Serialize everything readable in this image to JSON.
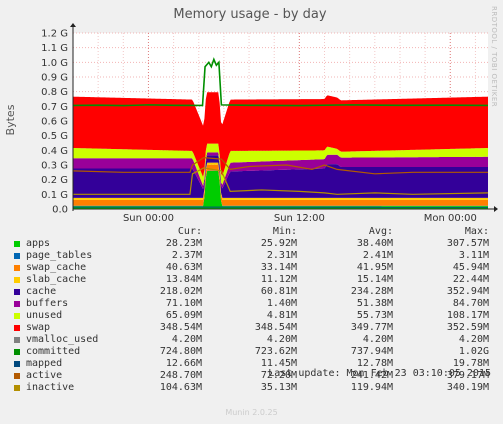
{
  "chart_data": {
    "type": "area",
    "title": "Memory usage - by day",
    "ylabel": "Bytes",
    "side_label": "RRDTOOL / TOBI OETIKER",
    "ylim": [
      0,
      1.2
    ],
    "y_ticks": [
      {
        "v": 0.0,
        "label": "0.0"
      },
      {
        "v": 0.1,
        "label": "0.1 G"
      },
      {
        "v": 0.2,
        "label": "0.2 G"
      },
      {
        "v": 0.3,
        "label": "0.3 G"
      },
      {
        "v": 0.4,
        "label": "0.4 G"
      },
      {
        "v": 0.5,
        "label": "0.5 G"
      },
      {
        "v": 0.6,
        "label": "0.6 G"
      },
      {
        "v": 0.7,
        "label": "0.7 G"
      },
      {
        "v": 0.8,
        "label": "0.8 G"
      },
      {
        "v": 0.9,
        "label": "0.9 G"
      },
      {
        "v": 1.0,
        "label": "1.0 G"
      },
      {
        "v": 1.1,
        "label": "1.1 G"
      },
      {
        "v": 1.2,
        "label": "1.2 G"
      }
    ],
    "x_ticks": [
      {
        "h": 6,
        "label": "Sun 00:00"
      },
      {
        "h": 18,
        "label": "Sun 12:00"
      },
      {
        "h": 30,
        "label": "Mon 00:00"
      }
    ],
    "xlim": [
      0,
      33
    ],
    "stack": [
      {
        "name": "apps",
        "color": "#00cc00",
        "times": [
          0,
          10.4,
          10.6,
          11.6,
          11.8,
          33
        ],
        "values": [
          0.02,
          0.02,
          0.26,
          0.26,
          0.02,
          0.02
        ]
      },
      {
        "name": "page_tables",
        "color": "#0066b3",
        "times": [
          0,
          33
        ],
        "values": [
          0.002,
          0.002
        ]
      },
      {
        "name": "swap_cache",
        "color": "#ff8000",
        "times": [
          0,
          33
        ],
        "values": [
          0.04,
          0.04
        ]
      },
      {
        "name": "slab_cache",
        "color": "#ffcc00",
        "times": [
          0,
          33
        ],
        "values": [
          0.014,
          0.014
        ]
      },
      {
        "name": "cache",
        "color": "#330099",
        "times": [
          0,
          9.5,
          10.4,
          11.8,
          12.5,
          20,
          20.2,
          21,
          21.3,
          33
        ],
        "values": [
          0.2,
          0.2,
          0.05,
          0.05,
          0.18,
          0.2,
          0.23,
          0.23,
          0.21,
          0.21
        ]
      },
      {
        "name": "buffers",
        "color": "#990099",
        "times": [
          0,
          9.5,
          10.4,
          11.8,
          12.5,
          33
        ],
        "values": [
          0.07,
          0.07,
          0.02,
          0.02,
          0.06,
          0.07
        ]
      },
      {
        "name": "unused",
        "color": "#ccff00",
        "times": [
          0,
          9.5,
          10.4,
          11.8,
          12.5,
          20,
          21,
          33
        ],
        "values": [
          0.07,
          0.05,
          0.06,
          0.06,
          0.08,
          0.06,
          0.04,
          0.06
        ]
      },
      {
        "name": "swap",
        "color": "#ff0000",
        "times": [
          0,
          33
        ],
        "values": [
          0.35,
          0.35
        ]
      }
    ],
    "lines": [
      {
        "name": "committed",
        "color": "#008f00",
        "width": 1.6,
        "points": [
          [
            0,
            0.706
          ],
          [
            2,
            0.708
          ],
          [
            4,
            0.705
          ],
          [
            6,
            0.71
          ],
          [
            8,
            0.707
          ],
          [
            10.3,
            0.706
          ],
          [
            10.5,
            0.97
          ],
          [
            10.8,
            1.0
          ],
          [
            11.0,
            0.97
          ],
          [
            11.2,
            1.02
          ],
          [
            11.4,
            0.98
          ],
          [
            11.6,
            1.0
          ],
          [
            11.8,
            0.71
          ],
          [
            14,
            0.707
          ],
          [
            18,
            0.705
          ],
          [
            22,
            0.71
          ],
          [
            26,
            0.707
          ],
          [
            30,
            0.708
          ],
          [
            33,
            0.706
          ]
        ]
      },
      {
        "name": "mapped",
        "color": "#00487d",
        "width": 1,
        "points": [
          [
            0,
            0.013
          ],
          [
            33,
            0.012
          ]
        ]
      },
      {
        "name": "active",
        "color": "#b35a00",
        "width": 1.2,
        "points": [
          [
            0,
            0.26
          ],
          [
            4,
            0.25
          ],
          [
            9.3,
            0.25
          ],
          [
            9.5,
            0.3
          ],
          [
            10.4,
            0.35
          ],
          [
            11.8,
            0.34
          ],
          [
            12.5,
            0.27
          ],
          [
            14,
            0.29
          ],
          [
            17,
            0.3
          ],
          [
            19,
            0.27
          ],
          [
            20,
            0.3
          ],
          [
            21,
            0.27
          ],
          [
            24,
            0.24
          ],
          [
            27,
            0.25
          ],
          [
            33,
            0.25
          ]
        ]
      },
      {
        "name": "inactive",
        "color": "#b38f00",
        "width": 1.2,
        "points": [
          [
            0,
            0.1
          ],
          [
            5,
            0.1
          ],
          [
            9.3,
            0.1
          ],
          [
            9.5,
            0.24
          ],
          [
            10.4,
            0.28
          ],
          [
            11.8,
            0.26
          ],
          [
            12.5,
            0.12
          ],
          [
            15,
            0.13
          ],
          [
            18,
            0.12
          ],
          [
            20,
            0.11
          ],
          [
            21,
            0.1
          ],
          [
            24,
            0.11
          ],
          [
            27,
            0.1
          ],
          [
            33,
            0.11
          ]
        ]
      }
    ]
  },
  "legend": {
    "headers": {
      "cur": "Cur:",
      "min": "Min:",
      "avg": "Avg:",
      "max": "Max:"
    },
    "rows": [
      {
        "name": "apps",
        "color": "#00cc00",
        "cur": "28.23M",
        "min": "25.92M",
        "avg": "38.40M",
        "max": "307.57M"
      },
      {
        "name": "page_tables",
        "color": "#0066b3",
        "cur": "2.37M",
        "min": "2.31M",
        "avg": "2.41M",
        "max": "3.11M"
      },
      {
        "name": "swap_cache",
        "color": "#ff8000",
        "cur": "40.63M",
        "min": "33.14M",
        "avg": "41.95M",
        "max": "45.94M"
      },
      {
        "name": "slab_cache",
        "color": "#ffcc00",
        "cur": "13.84M",
        "min": "11.12M",
        "avg": "15.14M",
        "max": "22.44M"
      },
      {
        "name": "cache",
        "color": "#330099",
        "cur": "218.02M",
        "min": "60.81M",
        "avg": "234.28M",
        "max": "352.94M"
      },
      {
        "name": "buffers",
        "color": "#990099",
        "cur": "71.10M",
        "min": "1.40M",
        "avg": "51.38M",
        "max": "84.70M"
      },
      {
        "name": "unused",
        "color": "#ccff00",
        "cur": "65.09M",
        "min": "4.81M",
        "avg": "55.73M",
        "max": "108.17M"
      },
      {
        "name": "swap",
        "color": "#ff0000",
        "cur": "348.54M",
        "min": "348.54M",
        "avg": "349.77M",
        "max": "352.59M"
      },
      {
        "name": "vmalloc_used",
        "color": "#808080",
        "cur": "4.20M",
        "min": "4.20M",
        "avg": "4.20M",
        "max": "4.20M"
      },
      {
        "name": "committed",
        "color": "#008f00",
        "cur": "724.80M",
        "min": "723.62M",
        "avg": "737.94M",
        "max": "1.02G"
      },
      {
        "name": "mapped",
        "color": "#00487d",
        "cur": "12.66M",
        "min": "11.45M",
        "avg": "12.78M",
        "max": "19.78M"
      },
      {
        "name": "active",
        "color": "#b35a00",
        "cur": "248.70M",
        "min": "72.20M",
        "avg": "241.42M",
        "max": "379.17M"
      },
      {
        "name": "inactive",
        "color": "#b38f00",
        "cur": "104.63M",
        "min": "35.13M",
        "avg": "119.94M",
        "max": "340.19M"
      }
    ]
  },
  "last_update": "Last update: Mon Feb 23 03:10:05 2015",
  "footer": "Munin 2.0.25"
}
